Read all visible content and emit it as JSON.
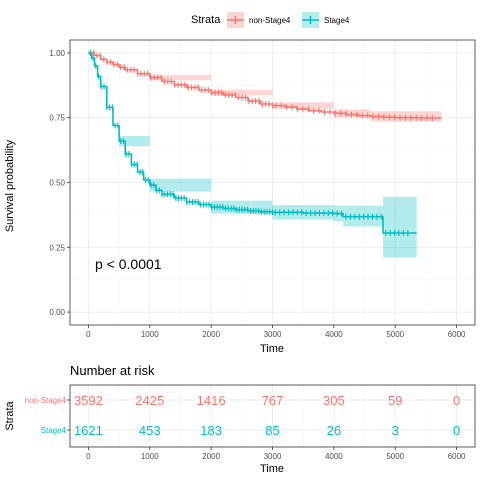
{
  "chart_data": {
    "type": "line",
    "subtype": "kaplan-meier",
    "legend": {
      "title": "Strata",
      "position": "top",
      "entries": [
        "non-Stage4",
        "Stage4"
      ]
    },
    "xlabel": "Time",
    "ylabel": "Survival probability",
    "xlim": [
      -300,
      6300
    ],
    "ylim": [
      -0.05,
      1.05
    ],
    "xticks": [
      0,
      1000,
      2000,
      3000,
      4000,
      5000,
      6000
    ],
    "yticks": [
      {
        "value": 0,
        "label": "0.00"
      },
      {
        "value": 0.25,
        "label": "0.25"
      },
      {
        "value": 0.5,
        "label": "0.50"
      },
      {
        "value": 0.75,
        "label": "0.75"
      },
      {
        "value": 1,
        "label": "1.00"
      }
    ],
    "grid": true,
    "annotation": {
      "text": "p < 0.0001",
      "x": 100,
      "y": 0.2
    },
    "series": [
      {
        "name": "non-Stage4",
        "color": "#F8766D",
        "points": [
          [
            0,
            1.0
          ],
          [
            100,
            0.99
          ],
          [
            200,
            0.975
          ],
          [
            300,
            0.965
          ],
          [
            400,
            0.955
          ],
          [
            500,
            0.945
          ],
          [
            600,
            0.935
          ],
          [
            800,
            0.92
          ],
          [
            1000,
            0.905
          ],
          [
            1200,
            0.89
          ],
          [
            1400,
            0.877
          ],
          [
            1600,
            0.867
          ],
          [
            1800,
            0.857
          ],
          [
            2000,
            0.847
          ],
          [
            2200,
            0.838
          ],
          [
            2400,
            0.828
          ],
          [
            2600,
            0.814
          ],
          [
            2800,
            0.803
          ],
          [
            3000,
            0.797
          ],
          [
            3200,
            0.791
          ],
          [
            3400,
            0.783
          ],
          [
            3600,
            0.777
          ],
          [
            3800,
            0.772
          ],
          [
            4000,
            0.767
          ],
          [
            4200,
            0.762
          ],
          [
            4400,
            0.758
          ],
          [
            4600,
            0.755
          ],
          [
            4800,
            0.752
          ],
          [
            5000,
            0.75
          ],
          [
            5400,
            0.749
          ],
          [
            5750,
            0.749
          ]
        ],
        "lower": [
          [
            0,
            1.0
          ],
          [
            1000,
            0.895
          ],
          [
            2000,
            0.836
          ],
          [
            3000,
            0.785
          ],
          [
            4000,
            0.752
          ],
          [
            4600,
            0.735
          ],
          [
            5750,
            0.725
          ]
        ],
        "upper": [
          [
            0,
            1.0
          ],
          [
            1000,
            0.915
          ],
          [
            2000,
            0.858
          ],
          [
            3000,
            0.809
          ],
          [
            4000,
            0.782
          ],
          [
            4600,
            0.775
          ],
          [
            5750,
            0.772
          ]
        ]
      },
      {
        "name": "Stage4",
        "color": "#00BFC4",
        "points": [
          [
            0,
            1.0
          ],
          [
            50,
            0.98
          ],
          [
            100,
            0.95
          ],
          [
            150,
            0.91
          ],
          [
            200,
            0.87
          ],
          [
            300,
            0.79
          ],
          [
            400,
            0.72
          ],
          [
            500,
            0.66
          ],
          [
            600,
            0.61
          ],
          [
            700,
            0.57
          ],
          [
            800,
            0.54
          ],
          [
            900,
            0.51
          ],
          [
            1000,
            0.49
          ],
          [
            1100,
            0.47
          ],
          [
            1200,
            0.455
          ],
          [
            1400,
            0.44
          ],
          [
            1600,
            0.425
          ],
          [
            1800,
            0.415
          ],
          [
            2000,
            0.405
          ],
          [
            2200,
            0.4
          ],
          [
            2400,
            0.395
          ],
          [
            2600,
            0.39
          ],
          [
            2800,
            0.387
          ],
          [
            3000,
            0.385
          ],
          [
            3500,
            0.382
          ],
          [
            4000,
            0.38
          ],
          [
            4150,
            0.368
          ],
          [
            4500,
            0.368
          ],
          [
            4750,
            0.368
          ],
          [
            4800,
            0.305
          ],
          [
            5350,
            0.305
          ]
        ],
        "lower": [
          [
            0,
            1.0
          ],
          [
            500,
            0.64
          ],
          [
            1000,
            0.465
          ],
          [
            2000,
            0.38
          ],
          [
            3000,
            0.357
          ],
          [
            4000,
            0.35
          ],
          [
            4150,
            0.33
          ],
          [
            4750,
            0.33
          ],
          [
            4800,
            0.21
          ],
          [
            5350,
            0.21
          ]
        ],
        "upper": [
          [
            0,
            1.0
          ],
          [
            500,
            0.68
          ],
          [
            1000,
            0.515
          ],
          [
            2000,
            0.43
          ],
          [
            3000,
            0.413
          ],
          [
            4000,
            0.41
          ],
          [
            4150,
            0.41
          ],
          [
            4750,
            0.41
          ],
          [
            4800,
            0.445
          ],
          [
            5350,
            0.445
          ]
        ]
      }
    ]
  },
  "risk_table": {
    "title": "Number at risk",
    "ylabel": "Strata",
    "xlabel": "Time",
    "times": [
      0,
      1000,
      2000,
      3000,
      4000,
      5000,
      6000
    ],
    "rows": [
      {
        "name": "non-Stage4",
        "color": "#F8766D",
        "values": [
          "3592",
          "2425",
          "1416",
          "767",
          "305",
          "59",
          "0"
        ]
      },
      {
        "name": "Stage4",
        "color": "#00BFC4",
        "values": [
          "1621",
          "453",
          "183",
          "85",
          "26",
          "3",
          "0"
        ]
      }
    ]
  }
}
